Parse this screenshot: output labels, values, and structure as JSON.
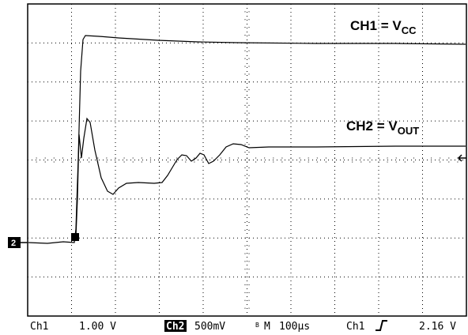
{
  "labels": {
    "ch1": {
      "text": "CH1 = V",
      "sub": "CC"
    },
    "ch2": {
      "text": "CH2 = V",
      "sub": "OUT"
    }
  },
  "marker": "2",
  "status": {
    "ch1": "Ch1",
    "ch1_scale": "1.00 V",
    "ch2": "Ch2",
    "ch2_scale": "500mV",
    "bw": "B",
    "mode": "M",
    "time": "100µs",
    "trig_src": "Ch1",
    "trig_level": "2.16 V"
  }
}
